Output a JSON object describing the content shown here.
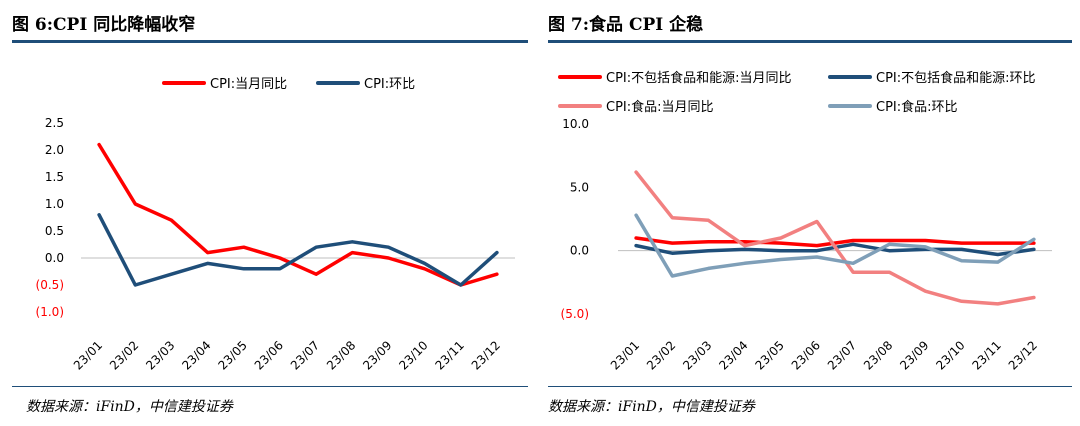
{
  "chart_data": [
    {
      "type": "line",
      "title": "图 6:CPI 同比降幅收窄",
      "source": "数据来源：iFinD，中信建投证券",
      "categories": [
        "23/01",
        "23/02",
        "23/03",
        "23/04",
        "23/05",
        "23/06",
        "23/07",
        "23/08",
        "23/09",
        "23/10",
        "23/11",
        "23/12"
      ],
      "ylim": [
        -1.0,
        2.5
      ],
      "yticks": [
        2.5,
        2.0,
        1.5,
        1.0,
        0.5,
        0.0,
        -0.5,
        -1.0
      ],
      "ytick_labels": [
        "2.5",
        "2.0",
        "1.5",
        "1.0",
        "0.5",
        "0.0",
        "(0.5)",
        "(1.0)"
      ],
      "legend_position": "top",
      "grid": false,
      "series": [
        {
          "name": "CPI:当月同比",
          "color": "#ff0000",
          "values": [
            2.1,
            1.0,
            0.7,
            0.1,
            0.2,
            0.0,
            -0.3,
            0.1,
            0.0,
            -0.2,
            -0.5,
            -0.3
          ]
        },
        {
          "name": "CPI:环比",
          "color": "#1f4e79",
          "values": [
            0.8,
            -0.5,
            -0.3,
            -0.1,
            -0.2,
            -0.2,
            0.2,
            0.3,
            0.2,
            -0.1,
            -0.5,
            0.1
          ]
        }
      ]
    },
    {
      "type": "line",
      "title": "图 7:食品 CPI 企稳",
      "source": "数据来源：iFinD，中信建投证券",
      "categories": [
        "23/01",
        "23/02",
        "23/03",
        "23/04",
        "23/05",
        "23/06",
        "23/07",
        "23/08",
        "23/09",
        "23/10",
        "23/11",
        "23/12"
      ],
      "ylim": [
        -5.0,
        10.0
      ],
      "yticks": [
        10.0,
        5.0,
        0.0,
        -5.0
      ],
      "ytick_labels": [
        "10.0",
        "5.0",
        "0.0",
        "(5.0)"
      ],
      "legend_position": "top",
      "grid": false,
      "series": [
        {
          "name": "CPI:不包括食品和能源:当月同比",
          "color": "#ff0000",
          "values": [
            1.0,
            0.6,
            0.7,
            0.7,
            0.6,
            0.4,
            0.8,
            0.8,
            0.8,
            0.6,
            0.6,
            0.6
          ]
        },
        {
          "name": "CPI:不包括食品和能源:环比",
          "color": "#1f4e79",
          "values": [
            0.4,
            -0.2,
            0.0,
            0.1,
            0.0,
            0.0,
            0.5,
            0.0,
            0.1,
            0.1,
            -0.3,
            0.1
          ]
        },
        {
          "name": "CPI:食品:当月同比",
          "color": "#f28080",
          "values": [
            6.2,
            2.6,
            2.4,
            0.4,
            1.0,
            2.3,
            -1.7,
            -1.7,
            -3.2,
            -4.0,
            -4.2,
            -3.7
          ]
        },
        {
          "name": "CPI:食品:环比",
          "color": "#7f9fb8",
          "values": [
            2.8,
            -2.0,
            -1.4,
            -1.0,
            -0.7,
            -0.5,
            -1.0,
            0.5,
            0.3,
            -0.8,
            -0.9,
            0.9
          ]
        }
      ]
    }
  ]
}
